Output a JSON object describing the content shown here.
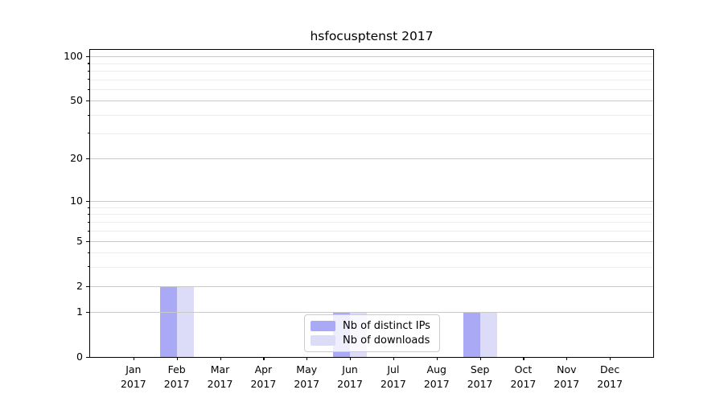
{
  "chart_data": {
    "type": "bar",
    "title": "hsfocusptenst 2017",
    "xlabel": "",
    "ylabel": "",
    "categories": [
      "Jan",
      "Feb",
      "Mar",
      "Apr",
      "May",
      "Jun",
      "Jul",
      "Aug",
      "Sep",
      "Oct",
      "Nov",
      "Dec"
    ],
    "category_year": "2017",
    "series": [
      {
        "name": "Nb of distinct IPs",
        "color": "#a9a9f5",
        "values": [
          0,
          2,
          0,
          0,
          0,
          1,
          0,
          0,
          1,
          0,
          0,
          0
        ]
      },
      {
        "name": "Nb of downloads",
        "color": "#dcdcf8",
        "values": [
          0,
          2,
          0,
          0,
          0,
          1,
          0,
          0,
          1,
          0,
          0,
          0
        ]
      }
    ],
    "yscale": "symlog",
    "ylim": [
      0,
      120
    ],
    "yticks_major": [
      0,
      1,
      2,
      5,
      10,
      20,
      50,
      100
    ],
    "yticks_minor": [
      3,
      4,
      6,
      7,
      8,
      9,
      30,
      40,
      60,
      70,
      80,
      90
    ],
    "grid": "horizontal major and minor gridlines, drawn above bars",
    "legend_position": "inside, lower center"
  },
  "colors": {
    "bar_distinct_ips": "#a9a9f5",
    "bar_downloads": "#dcdcf8",
    "grid_major": "#c9c9c9",
    "grid_minor": "#ededed",
    "axis": "#000000",
    "legend_border": "#cccccc",
    "background": "#ffffff"
  }
}
